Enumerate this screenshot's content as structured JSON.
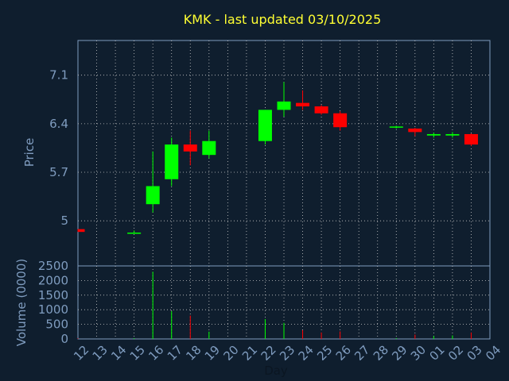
{
  "chart_data": {
    "type": "candlestick",
    "title": "KMK - last updated 03/10/2025",
    "xlabel": "Day",
    "ylabel": "Price",
    "volume_ylabel": "Volume (0000)",
    "x_tick_labels": [
      "12",
      "13",
      "14",
      "15",
      "16",
      "17",
      "18",
      "19",
      "20",
      "21",
      "22",
      "23",
      "24",
      "25",
      "26",
      "27",
      "28",
      "29",
      "30",
      "01",
      "02",
      "03",
      "04"
    ],
    "price_ylim": [
      4.35,
      7.6
    ],
    "price_yticks": [
      {
        "value": 5.0,
        "label": "5"
      },
      {
        "value": 5.7,
        "label": "5.7"
      },
      {
        "value": 6.4,
        "label": "6.4"
      },
      {
        "value": 7.1,
        "label": "7.1"
      }
    ],
    "volume_ylim": [
      0,
      2500
    ],
    "volume_yticks": [
      {
        "value": 0,
        "label": "0"
      },
      {
        "value": 500,
        "label": "500"
      },
      {
        "value": 1000,
        "label": "1000"
      },
      {
        "value": 1500,
        "label": "1500"
      },
      {
        "value": 2000,
        "label": "2000"
      },
      {
        "value": 2500,
        "label": "2500"
      }
    ],
    "grid": true,
    "colors": {
      "background": "#0f1e2e",
      "plot_border": "#7f9cbf",
      "grid": "#c8c8c8",
      "title": "#ffff33",
      "up": "#00ff00",
      "down": "#ff0000",
      "tick_text": "#7f9cbf"
    },
    "candles": [
      {
        "x": 12,
        "open": 4.88,
        "high": 4.88,
        "low": 4.84,
        "close": 4.84,
        "volume": 20
      },
      {
        "x": 15,
        "open": 4.83,
        "high": 4.86,
        "low": 4.82,
        "close": 4.83,
        "volume": 30
      },
      {
        "x": 16,
        "open": 5.24,
        "high": 6.0,
        "low": 5.12,
        "close": 5.5,
        "volume": 2300
      },
      {
        "x": 17,
        "open": 5.6,
        "high": 6.2,
        "low": 5.5,
        "close": 6.1,
        "volume": 950
      },
      {
        "x": 18,
        "open": 6.1,
        "high": 6.3,
        "low": 5.8,
        "close": 6.0,
        "volume": 800
      },
      {
        "x": 19,
        "open": 5.95,
        "high": 6.3,
        "low": 5.9,
        "close": 6.15,
        "volume": 250
      },
      {
        "x": 22,
        "open": 6.15,
        "high": 6.6,
        "low": 6.1,
        "close": 6.6,
        "volume": 680
      },
      {
        "x": 23,
        "open": 6.6,
        "high": 7.0,
        "low": 6.5,
        "close": 6.72,
        "volume": 550
      },
      {
        "x": 24,
        "open": 6.7,
        "high": 6.88,
        "low": 6.6,
        "close": 6.65,
        "volume": 300
      },
      {
        "x": 25,
        "open": 6.65,
        "high": 6.67,
        "low": 6.53,
        "close": 6.55,
        "volume": 220
      },
      {
        "x": 26,
        "open": 6.55,
        "high": 6.58,
        "low": 6.3,
        "close": 6.35,
        "volume": 260
      },
      {
        "x": 29,
        "open": 6.35,
        "high": 6.37,
        "low": 6.33,
        "close": 6.36,
        "volume": 30
      },
      {
        "x": 30,
        "open": 6.33,
        "high": 6.34,
        "low": 6.22,
        "close": 6.28,
        "volume": 150
      },
      {
        "x": 1,
        "open": 6.23,
        "high": 6.27,
        "low": 6.2,
        "close": 6.25,
        "volume": 100
      },
      {
        "x": 2,
        "open": 6.23,
        "high": 6.28,
        "low": 6.2,
        "close": 6.25,
        "volume": 120
      },
      {
        "x": 3,
        "open": 6.25,
        "high": 6.26,
        "low": 6.08,
        "close": 6.1,
        "volume": 220
      }
    ]
  }
}
